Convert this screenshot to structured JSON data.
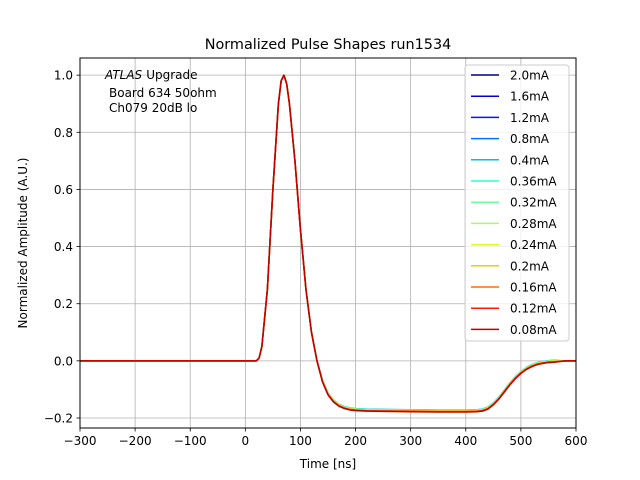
{
  "chart_data": {
    "type": "line",
    "title": "Normalized Pulse Shapes run1534",
    "xlabel": "Time [ns]",
    "ylabel": "Normalized Amplitude (A.U.)",
    "xlim": [
      -300,
      600
    ],
    "ylim": [
      -0.235,
      1.06
    ],
    "x_ticks": [
      -300,
      -200,
      -100,
      0,
      100,
      200,
      300,
      400,
      500,
      600
    ],
    "x_tick_labels": [
      "−300",
      "−200",
      "−100",
      "0",
      "100",
      "200",
      "300",
      "400",
      "500",
      "600"
    ],
    "y_ticks": [
      -0.2,
      0.0,
      0.2,
      0.4,
      0.6,
      0.8,
      1.0
    ],
    "y_tick_labels": [
      "−0.2",
      "0.0",
      "0.2",
      "0.4",
      "0.6",
      "0.8",
      "1.0"
    ],
    "grid": true,
    "legend_position": "upper right",
    "annotation": {
      "atlas": "ATLAS",
      "upgrade": "Upgrade",
      "line2": "Board 634 50ohm",
      "line3": "Ch079 20dB lo"
    },
    "shared_curve": {
      "x": [
        -300,
        -100,
        0,
        20,
        25,
        30,
        40,
        50,
        60,
        65,
        70,
        75,
        80,
        90,
        100,
        110,
        120,
        130,
        140,
        150,
        160,
        170,
        180,
        190,
        200,
        220,
        250,
        300,
        350,
        400,
        420,
        430,
        440,
        450,
        460,
        470,
        480,
        490,
        500,
        510,
        520,
        530,
        540,
        550,
        560,
        580,
        600
      ],
      "y": [
        0,
        0,
        0,
        0,
        0.01,
        0.05,
        0.25,
        0.6,
        0.9,
        0.98,
        1.0,
        0.97,
        0.9,
        0.7,
        0.46,
        0.25,
        0.1,
        0.0,
        -0.07,
        -0.115,
        -0.14,
        -0.155,
        -0.163,
        -0.168,
        -0.17,
        -0.172,
        -0.173,
        -0.174,
        -0.175,
        -0.175,
        -0.174,
        -0.172,
        -0.165,
        -0.15,
        -0.13,
        -0.105,
        -0.08,
        -0.058,
        -0.04,
        -0.026,
        -0.016,
        -0.009,
        -0.005,
        -0.002,
        -0.001,
        0,
        0
      ]
    },
    "series": [
      {
        "name": "2.0mA",
        "color": "#00007f",
        "y_offset": 0.0
      },
      {
        "name": "1.6mA",
        "color": "#0000d0",
        "y_offset": 0.0
      },
      {
        "name": "1.2mA",
        "color": "#0014ff",
        "y_offset": 0.0
      },
      {
        "name": "0.8mA",
        "color": "#0074ff",
        "y_offset": 0.002
      },
      {
        "name": "0.4mA",
        "color": "#00c0e0",
        "y_offset": 0.003
      },
      {
        "name": "0.36mA",
        "color": "#2affce",
        "y_offset": 0.002
      },
      {
        "name": "0.32mA",
        "color": "#6cffa0",
        "y_offset": 0.001
      },
      {
        "name": "0.28mA",
        "color": "#a4ff5a",
        "y_offset": 0.0
      },
      {
        "name": "0.24mA",
        "color": "#deff22",
        "y_offset": 0.0
      },
      {
        "name": "0.2mA",
        "color": "#ffc400",
        "y_offset": -0.001
      },
      {
        "name": "0.16mA",
        "color": "#ff6c00",
        "y_offset": -0.002
      },
      {
        "name": "0.12mA",
        "color": "#ff1e00",
        "y_offset": -0.003
      },
      {
        "name": "0.08mA",
        "color": "#bf0000",
        "y_offset": -0.004
      }
    ]
  }
}
